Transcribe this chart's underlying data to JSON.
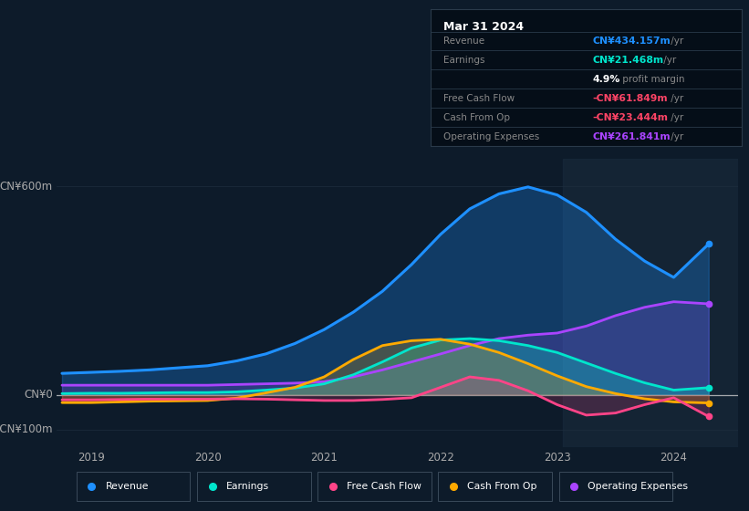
{
  "background_color": "#0d1b2a",
  "title_box": {
    "date": "Mar 31 2024",
    "rows": [
      {
        "label": "Revenue",
        "value": "CN¥434.157m",
        "unit": " /yr",
        "value_color": "#1e90ff"
      },
      {
        "label": "Earnings",
        "value": "CN¥21.468m",
        "unit": " /yr",
        "value_color": "#00e5cc"
      },
      {
        "label": "",
        "value": "4.9%",
        "unit": " profit margin",
        "value_color": "#ffffff"
      },
      {
        "label": "Free Cash Flow",
        "value": "-CN¥61.849m",
        "unit": " /yr",
        "value_color": "#ff4466"
      },
      {
        "label": "Cash From Op",
        "value": "-CN¥23.444m",
        "unit": " /yr",
        "value_color": "#ff4466"
      },
      {
        "label": "Operating Expenses",
        "value": "CN¥261.841m",
        "unit": " /yr",
        "value_color": "#aa44ff"
      }
    ]
  },
  "xlim": [
    2018.7,
    2024.55
  ],
  "ylim": [
    -150,
    680
  ],
  "yticks": [
    -100,
    0,
    600
  ],
  "ytick_labels": [
    "-CN¥100m",
    "CN¥0",
    "CN¥600m"
  ],
  "xticks": [
    2019,
    2020,
    2021,
    2022,
    2023,
    2024
  ],
  "highlight_x_start": 2023.05,
  "highlight_x_end": 2024.55,
  "series": {
    "revenue": {
      "color": "#1e90ff",
      "fill_alpha": 0.28,
      "lw": 2.2,
      "x": [
        2018.75,
        2019.0,
        2019.25,
        2019.5,
        2019.75,
        2020.0,
        2020.25,
        2020.5,
        2020.75,
        2021.0,
        2021.25,
        2021.5,
        2021.75,
        2022.0,
        2022.25,
        2022.5,
        2022.75,
        2023.0,
        2023.25,
        2023.5,
        2023.75,
        2024.0,
        2024.3
      ],
      "y": [
        62,
        65,
        68,
        72,
        78,
        84,
        98,
        118,
        148,
        188,
        238,
        298,
        375,
        462,
        535,
        578,
        598,
        575,
        525,
        448,
        385,
        338,
        434
      ]
    },
    "earnings": {
      "color": "#00e5cc",
      "fill_alpha": 0.28,
      "lw": 2.0,
      "x": [
        2018.75,
        2019.0,
        2019.25,
        2019.5,
        2019.75,
        2020.0,
        2020.25,
        2020.5,
        2020.75,
        2021.0,
        2021.25,
        2021.5,
        2021.75,
        2022.0,
        2022.25,
        2022.5,
        2022.75,
        2023.0,
        2023.25,
        2023.5,
        2023.75,
        2024.0,
        2024.3
      ],
      "y": [
        4,
        5,
        5,
        6,
        7,
        7,
        9,
        14,
        20,
        32,
        58,
        95,
        135,
        158,
        162,
        156,
        142,
        122,
        92,
        62,
        35,
        14,
        21
      ]
    },
    "free_cash_flow": {
      "color": "#ff4488",
      "fill_alpha": 0.18,
      "lw": 2.0,
      "x": [
        2018.75,
        2019.0,
        2019.25,
        2019.5,
        2019.75,
        2020.0,
        2020.25,
        2020.5,
        2020.75,
        2021.0,
        2021.25,
        2021.5,
        2021.75,
        2022.0,
        2022.25,
        2022.5,
        2022.75,
        2023.0,
        2023.25,
        2023.5,
        2023.75,
        2024.0,
        2024.3
      ],
      "y": [
        -14,
        -14,
        -13,
        -12,
        -12,
        -12,
        -11,
        -12,
        -14,
        -16,
        -16,
        -13,
        -8,
        22,
        52,
        42,
        12,
        -28,
        -58,
        -52,
        -28,
        -8,
        -62
      ]
    },
    "cash_from_op": {
      "color": "#ffaa00",
      "fill_alpha": 0.22,
      "lw": 2.0,
      "x": [
        2018.75,
        2019.0,
        2019.25,
        2019.5,
        2019.75,
        2020.0,
        2020.25,
        2020.5,
        2020.75,
        2021.0,
        2021.25,
        2021.5,
        2021.75,
        2022.0,
        2022.25,
        2022.5,
        2022.75,
        2023.0,
        2023.25,
        2023.5,
        2023.75,
        2024.0,
        2024.3
      ],
      "y": [
        -22,
        -22,
        -20,
        -18,
        -17,
        -16,
        -9,
        6,
        22,
        52,
        102,
        142,
        156,
        160,
        146,
        122,
        90,
        55,
        24,
        4,
        -11,
        -20,
        -23
      ]
    },
    "operating_expenses": {
      "color": "#aa44ff",
      "fill_alpha": 0.18,
      "lw": 2.0,
      "x": [
        2018.75,
        2019.0,
        2019.25,
        2019.5,
        2019.75,
        2020.0,
        2020.25,
        2020.5,
        2020.75,
        2021.0,
        2021.25,
        2021.5,
        2021.75,
        2022.0,
        2022.25,
        2022.5,
        2022.75,
        2023.0,
        2023.25,
        2023.5,
        2023.75,
        2024.0,
        2024.3
      ],
      "y": [
        28,
        28,
        28,
        28,
        28,
        28,
        30,
        32,
        34,
        38,
        52,
        72,
        95,
        118,
        142,
        162,
        172,
        178,
        198,
        228,
        252,
        268,
        262
      ]
    }
  },
  "legend": [
    {
      "label": "Revenue",
      "color": "#1e90ff"
    },
    {
      "label": "Earnings",
      "color": "#00e5cc"
    },
    {
      "label": "Free Cash Flow",
      "color": "#ff4488"
    },
    {
      "label": "Cash From Op",
      "color": "#ffaa00"
    },
    {
      "label": "Operating Expenses",
      "color": "#aa44ff"
    }
  ],
  "grid_color": "#1e2e3e",
  "zero_line_color": "#cccccc",
  "tick_color": "#aaaaaa",
  "box_bg": "#050e18",
  "box_border": "#2a3a4a"
}
